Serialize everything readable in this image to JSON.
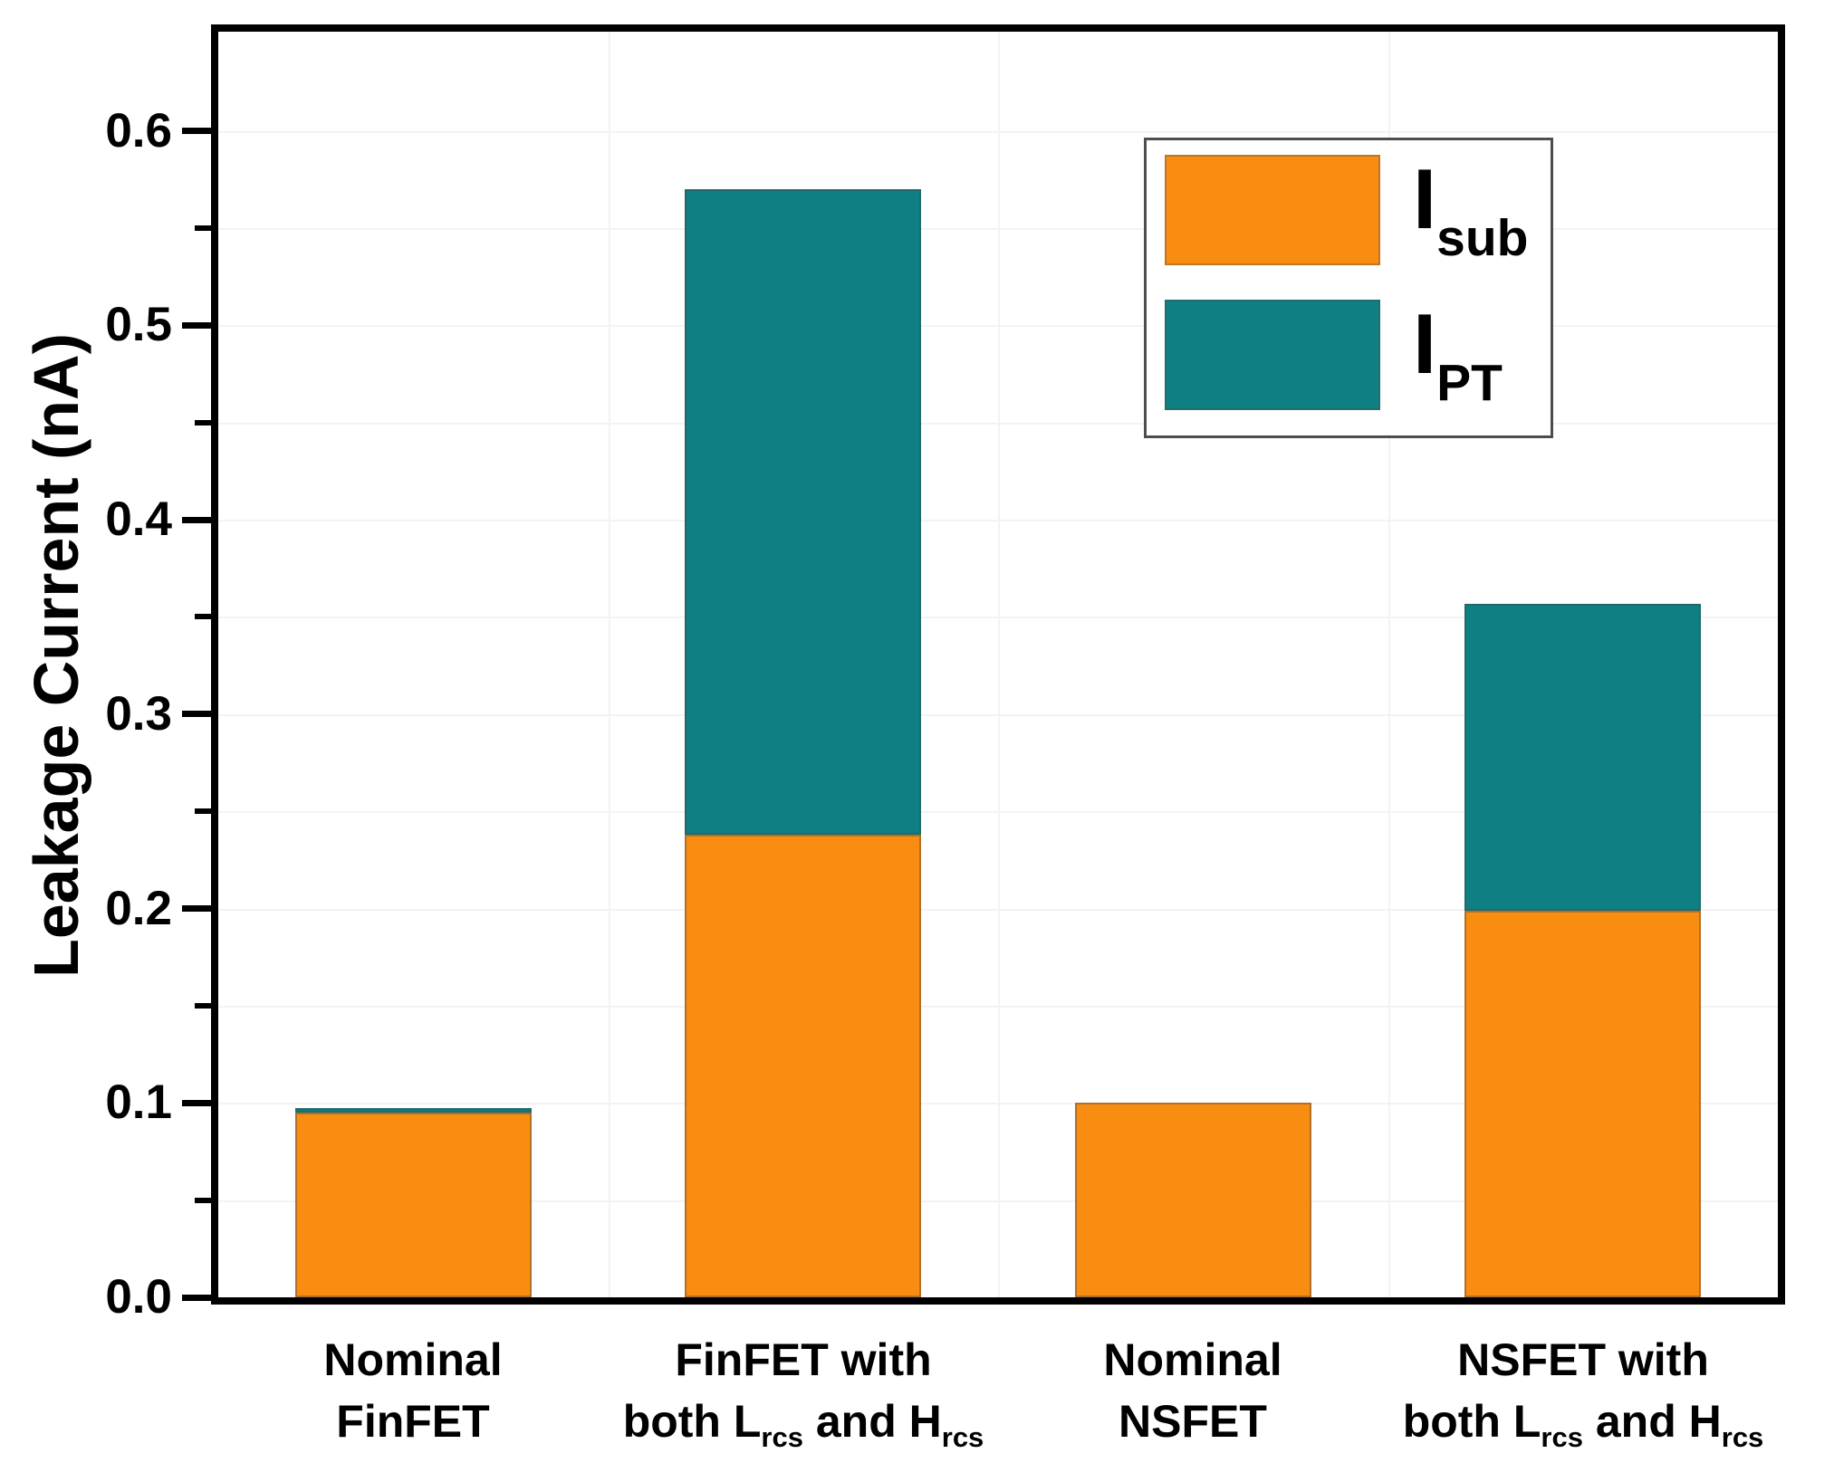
{
  "chart_data": {
    "type": "bar",
    "stacked": true,
    "title": "",
    "xlabel": "",
    "ylabel": "Leakage Current (nA)",
    "y_axis": {
      "min": 0,
      "max_displayed": 0.651,
      "major_step": 0.1,
      "minor_step": 0.05,
      "major_tick_labels": [
        "0.0",
        "0.1",
        "0.2",
        "0.3",
        "0.4",
        "0.5",
        "0.6"
      ],
      "grid": "faint horizontal and vertical lines"
    },
    "categories": [
      {
        "id": "nominal-finfet",
        "lines": [
          [
            {
              "t": "Nominal"
            }
          ],
          [
            {
              "t": "FinFET"
            }
          ]
        ]
      },
      {
        "id": "finfet-rcs",
        "lines": [
          [
            {
              "t": "FinFET with"
            }
          ],
          [
            {
              "t": "both L"
            },
            {
              "sub": "rcs"
            },
            {
              "t": " and H"
            },
            {
              "sub": "rcs"
            }
          ]
        ]
      },
      {
        "id": "nominal-nsfet",
        "lines": [
          [
            {
              "t": "Nominal"
            }
          ],
          [
            {
              "t": "NSFET"
            }
          ]
        ]
      },
      {
        "id": "nsfet-rcs",
        "lines": [
          [
            {
              "t": "NSFET with"
            }
          ],
          [
            {
              "t": "both L"
            },
            {
              "sub": "rcs"
            },
            {
              "t": " and H"
            },
            {
              "sub": "rcs"
            }
          ]
        ]
      }
    ],
    "series": [
      {
        "name": "Isub",
        "legend_main": "I",
        "legend_sub": "sub",
        "color": "#F98D12",
        "values": [
          0.095,
          0.238,
          0.1,
          0.199
        ]
      },
      {
        "name": "IPT",
        "legend_main": "I",
        "legend_sub": "PT",
        "color": "#0E7F82",
        "values": [
          0.0025,
          0.332,
          0.0,
          0.158
        ]
      }
    ],
    "legend_position": "top-right",
    "colors": {
      "frame": "#000000",
      "grid": "#F3F3F3",
      "legend_border": "#4D4D4D",
      "segment_border": "rgba(70,70,70,0.40)",
      "text": "#000000",
      "background": "#FFFFFF"
    }
  }
}
